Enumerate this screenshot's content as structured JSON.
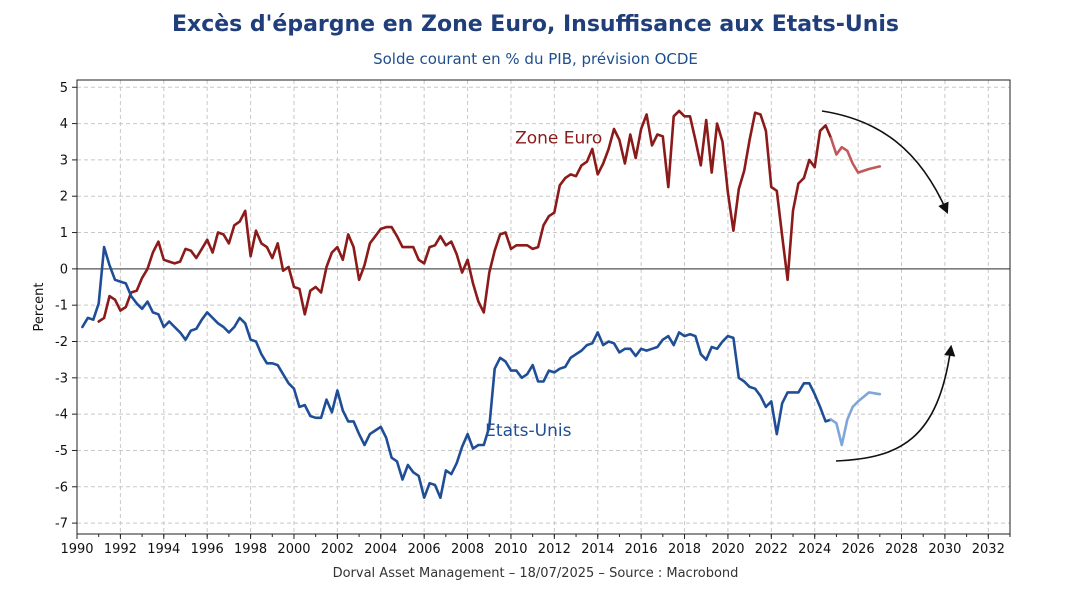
{
  "header": {
    "title": "Excès d'épargne en Zone Euro, Insuffisance aux Etats-Unis",
    "subtitle": "Solde courant en % du PIB, prévision OCDE"
  },
  "footer": {
    "credit": "Dorval Asset Management – 18/07/2025 –   Source : Macrobond"
  },
  "colors": {
    "euro": "#8b1a1a",
    "euro_forecast": "#c0595b",
    "us": "#1f4e96",
    "us_forecast": "#7fa6d6",
    "zero_line": "#555555",
    "grid": "#c8c8c8"
  },
  "chart_data": {
    "type": "line",
    "title": "Excès d'épargne en Zone Euro, Insuffisance aux Etats-Unis",
    "subtitle": "Solde courant en % du PIB, prévision OCDE",
    "xlabel": "",
    "ylabel": "Percent",
    "xlim": [
      1990,
      2033
    ],
    "ylim": [
      -7.3,
      5.2
    ],
    "grid": true,
    "x_ticks": [
      1990,
      1992,
      1994,
      1996,
      1998,
      2000,
      2002,
      2004,
      2006,
      2008,
      2010,
      2012,
      2014,
      2016,
      2018,
      2020,
      2022,
      2024,
      2026,
      2028,
      2030,
      2032
    ],
    "y_ticks": [
      5,
      4,
      3,
      2,
      1,
      0,
      -1,
      -2,
      -3,
      -4,
      -5,
      -6,
      -7
    ],
    "series": [
      {
        "name": "Zone Euro",
        "label_position": [
          2012.2,
          3.45
        ],
        "x": [
          1991.0,
          1991.25,
          1991.5,
          1991.75,
          1992.0,
          1992.25,
          1992.5,
          1992.75,
          1993.0,
          1993.25,
          1993.5,
          1993.75,
          1994.0,
          1994.25,
          1994.5,
          1994.75,
          1995.0,
          1995.25,
          1995.5,
          1995.75,
          1996.0,
          1996.25,
          1996.5,
          1996.75,
          1997.0,
          1997.25,
          1997.5,
          1997.75,
          1998.0,
          1998.25,
          1998.5,
          1998.75,
          1999.0,
          1999.25,
          1999.5,
          1999.75,
          2000.0,
          2000.25,
          2000.5,
          2000.75,
          2001.0,
          2001.25,
          2001.5,
          2001.75,
          2002.0,
          2002.25,
          2002.5,
          2002.75,
          2003.0,
          2003.25,
          2003.5,
          2003.75,
          2004.0,
          2004.25,
          2004.5,
          2004.75,
          2005.0,
          2005.25,
          2005.5,
          2005.75,
          2006.0,
          2006.25,
          2006.5,
          2006.75,
          2007.0,
          2007.25,
          2007.5,
          2007.75,
          2008.0,
          2008.25,
          2008.5,
          2008.75,
          2009.0,
          2009.25,
          2009.5,
          2009.75,
          2010.0,
          2010.25,
          2010.5,
          2010.75,
          2011.0,
          2011.25,
          2011.5,
          2011.75,
          2012.0,
          2012.25,
          2012.5,
          2012.75,
          2013.0,
          2013.25,
          2013.5,
          2013.75,
          2014.0,
          2014.25,
          2014.5,
          2014.75,
          2015.0,
          2015.25,
          2015.5,
          2015.75,
          2016.0,
          2016.25,
          2016.5,
          2016.75,
          2017.0,
          2017.25,
          2017.5,
          2017.75,
          2018.0,
          2018.25,
          2018.5,
          2018.75,
          2019.0,
          2019.25,
          2019.5,
          2019.75,
          2020.0,
          2020.25,
          2020.5,
          2020.75,
          2021.0,
          2021.25,
          2021.5,
          2021.75,
          2022.0,
          2022.25,
          2022.5,
          2022.75,
          2023.0,
          2023.25,
          2023.5,
          2023.75,
          2024.0,
          2024.25,
          2024.5,
          2024.75
        ],
        "values": [
          -1.45,
          -1.35,
          -0.75,
          -0.85,
          -1.15,
          -1.05,
          -0.65,
          -0.6,
          -0.25,
          0.0,
          0.45,
          0.75,
          0.25,
          0.2,
          0.15,
          0.2,
          0.55,
          0.5,
          0.3,
          0.55,
          0.8,
          0.45,
          1.0,
          0.95,
          0.7,
          1.2,
          1.3,
          1.6,
          0.35,
          1.05,
          0.7,
          0.6,
          0.3,
          0.7,
          -0.05,
          0.05,
          -0.5,
          -0.55,
          -1.25,
          -0.6,
          -0.5,
          -0.65,
          0.05,
          0.45,
          0.6,
          0.25,
          0.95,
          0.6,
          -0.3,
          0.1,
          0.7,
          0.9,
          1.1,
          1.15,
          1.15,
          0.9,
          0.6,
          0.6,
          0.6,
          0.25,
          0.15,
          0.6,
          0.65,
          0.9,
          0.65,
          0.75,
          0.4,
          -0.1,
          0.25,
          -0.4,
          -0.9,
          -1.2,
          -0.1,
          0.5,
          0.95,
          1.0,
          0.55,
          0.65,
          0.65,
          0.65,
          0.55,
          0.6,
          1.2,
          1.45,
          1.55,
          2.3,
          2.5,
          2.6,
          2.55,
          2.85,
          2.95,
          3.3,
          2.6,
          2.9,
          3.3,
          3.85,
          3.55,
          2.9,
          3.7,
          3.05,
          3.85,
          4.25,
          3.4,
          3.7,
          3.65,
          2.25,
          4.2,
          4.35,
          4.2,
          4.2,
          3.55,
          2.85,
          4.1,
          2.65,
          4.0,
          3.5,
          2.1,
          1.05,
          2.2,
          2.7,
          3.55,
          4.3,
          4.25,
          3.8,
          2.25,
          2.15,
          0.9,
          -0.3,
          1.6,
          2.35,
          2.5,
          3.0,
          2.8,
          3.8,
          3.95,
          3.6
        ]
      },
      {
        "name": "Zone Euro (prévision)",
        "x": [
          2024.75,
          2025.0,
          2025.25,
          2025.5,
          2025.75,
          2026.0,
          2026.5,
          2027.0
        ],
        "values": [
          3.6,
          3.15,
          3.35,
          3.25,
          2.9,
          2.65,
          2.75,
          2.82
        ]
      },
      {
        "name": "Etats-Unis",
        "label_position": [
          2010.8,
          -4.6
        ],
        "x": [
          1990.25,
          1990.5,
          1990.75,
          1991.0,
          1991.25,
          1991.5,
          1991.75,
          1992.0,
          1992.25,
          1992.5,
          1992.75,
          1993.0,
          1993.25,
          1993.5,
          1993.75,
          1994.0,
          1994.25,
          1994.5,
          1994.75,
          1995.0,
          1995.25,
          1995.5,
          1995.75,
          1996.0,
          1996.25,
          1996.5,
          1996.75,
          1997.0,
          1997.25,
          1997.5,
          1997.75,
          1998.0,
          1998.25,
          1998.5,
          1998.75,
          1999.0,
          1999.25,
          1999.5,
          1999.75,
          2000.0,
          2000.25,
          2000.5,
          2000.75,
          2001.0,
          2001.25,
          2001.5,
          2001.75,
          2002.0,
          2002.25,
          2002.5,
          2002.75,
          2003.0,
          2003.25,
          2003.5,
          2003.75,
          2004.0,
          2004.25,
          2004.5,
          2004.75,
          2005.0,
          2005.25,
          2005.5,
          2005.75,
          2006.0,
          2006.25,
          2006.5,
          2006.75,
          2007.0,
          2007.25,
          2007.5,
          2007.75,
          2008.0,
          2008.25,
          2008.5,
          2008.75,
          2009.0,
          2009.25,
          2009.5,
          2009.75,
          2010.0,
          2010.25,
          2010.5,
          2010.75,
          2011.0,
          2011.25,
          2011.5,
          2011.75,
          2012.0,
          2012.25,
          2012.5,
          2012.75,
          2013.0,
          2013.25,
          2013.5,
          2013.75,
          2014.0,
          2014.25,
          2014.5,
          2014.75,
          2015.0,
          2015.25,
          2015.5,
          2015.75,
          2016.0,
          2016.25,
          2016.5,
          2016.75,
          2017.0,
          2017.25,
          2017.5,
          2017.75,
          2018.0,
          2018.25,
          2018.5,
          2018.75,
          2019.0,
          2019.25,
          2019.5,
          2019.75,
          2020.0,
          2020.25,
          2020.5,
          2020.75,
          2021.0,
          2021.25,
          2021.5,
          2021.75,
          2022.0,
          2022.25,
          2022.5,
          2022.75,
          2023.0,
          2023.25,
          2023.5,
          2023.75,
          2024.0,
          2024.25,
          2024.5,
          2024.75
        ],
        "values": [
          -1.6,
          -1.35,
          -1.4,
          -0.95,
          0.6,
          0.1,
          -0.3,
          -0.35,
          -0.4,
          -0.75,
          -0.95,
          -1.1,
          -0.9,
          -1.2,
          -1.25,
          -1.6,
          -1.45,
          -1.6,
          -1.75,
          -1.95,
          -1.7,
          -1.65,
          -1.4,
          -1.2,
          -1.35,
          -1.5,
          -1.6,
          -1.75,
          -1.6,
          -1.35,
          -1.5,
          -1.95,
          -2.0,
          -2.35,
          -2.6,
          -2.6,
          -2.65,
          -2.9,
          -3.15,
          -3.3,
          -3.8,
          -3.75,
          -4.05,
          -4.1,
          -4.1,
          -3.6,
          -3.95,
          -3.35,
          -3.9,
          -4.2,
          -4.2,
          -4.55,
          -4.85,
          -4.55,
          -4.45,
          -4.35,
          -4.65,
          -5.2,
          -5.3,
          -5.8,
          -5.4,
          -5.6,
          -5.7,
          -6.3,
          -5.9,
          -5.95,
          -6.3,
          -5.55,
          -5.65,
          -5.35,
          -4.9,
          -4.55,
          -4.95,
          -4.85,
          -4.85,
          -4.35,
          -2.75,
          -2.45,
          -2.55,
          -2.8,
          -2.8,
          -3.0,
          -2.9,
          -2.65,
          -3.1,
          -3.1,
          -2.8,
          -2.85,
          -2.75,
          -2.7,
          -2.45,
          -2.35,
          -2.25,
          -2.1,
          -2.05,
          -1.75,
          -2.1,
          -2.0,
          -2.05,
          -2.3,
          -2.2,
          -2.2,
          -2.4,
          -2.2,
          -2.25,
          -2.2,
          -2.15,
          -1.95,
          -1.85,
          -2.1,
          -1.75,
          -1.85,
          -1.8,
          -1.85,
          -2.35,
          -2.5,
          -2.15,
          -2.2,
          -2.0,
          -1.85,
          -1.9,
          -3.0,
          -3.1,
          -3.25,
          -3.3,
          -3.5,
          -3.8,
          -3.65,
          -4.55,
          -3.7,
          -3.4,
          -3.4,
          -3.4,
          -3.15,
          -3.15,
          -3.45,
          -3.8,
          -4.2,
          -4.15
        ]
      },
      {
        "name": "Etats-Unis (prévision)",
        "x": [
          2024.75,
          2025.0,
          2025.25,
          2025.5,
          2025.75,
          2026.0,
          2026.5,
          2027.0
        ],
        "values": [
          -4.15,
          -4.25,
          -4.85,
          -4.15,
          -3.8,
          -3.65,
          -3.4,
          -3.45
        ]
      }
    ],
    "annotations": [
      {
        "name": "Zone Euro",
        "color": "#8b1a1a"
      },
      {
        "name": "Etats-Unis",
        "color": "#1f4e96"
      }
    ]
  }
}
